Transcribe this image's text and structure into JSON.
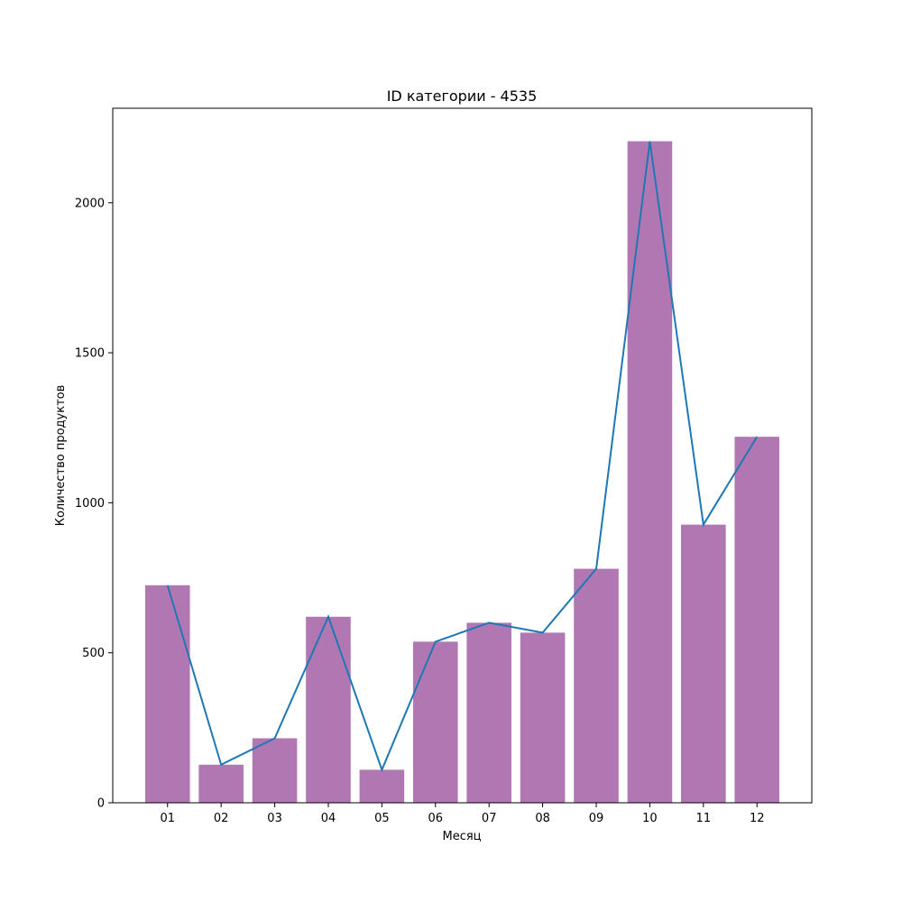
{
  "chart_data": {
    "type": "bar",
    "title": "ID категории - 4535",
    "xlabel": "Месяц",
    "ylabel": "Количество продуктов",
    "categories": [
      "01",
      "02",
      "03",
      "04",
      "05",
      "06",
      "07",
      "08",
      "09",
      "10",
      "11",
      "12"
    ],
    "values": [
      725,
      127,
      215,
      620,
      110,
      537,
      600,
      567,
      780,
      2205,
      927,
      1220
    ],
    "line_values": [
      725,
      127,
      215,
      620,
      110,
      537,
      600,
      567,
      780,
      2205,
      927,
      1220
    ],
    "yticks": [
      0,
      500,
      1000,
      1500,
      2000
    ],
    "ylim": [
      0,
      2315
    ],
    "grid": false,
    "bar_color": "#b177b2",
    "line_color": "#1f77b4"
  }
}
